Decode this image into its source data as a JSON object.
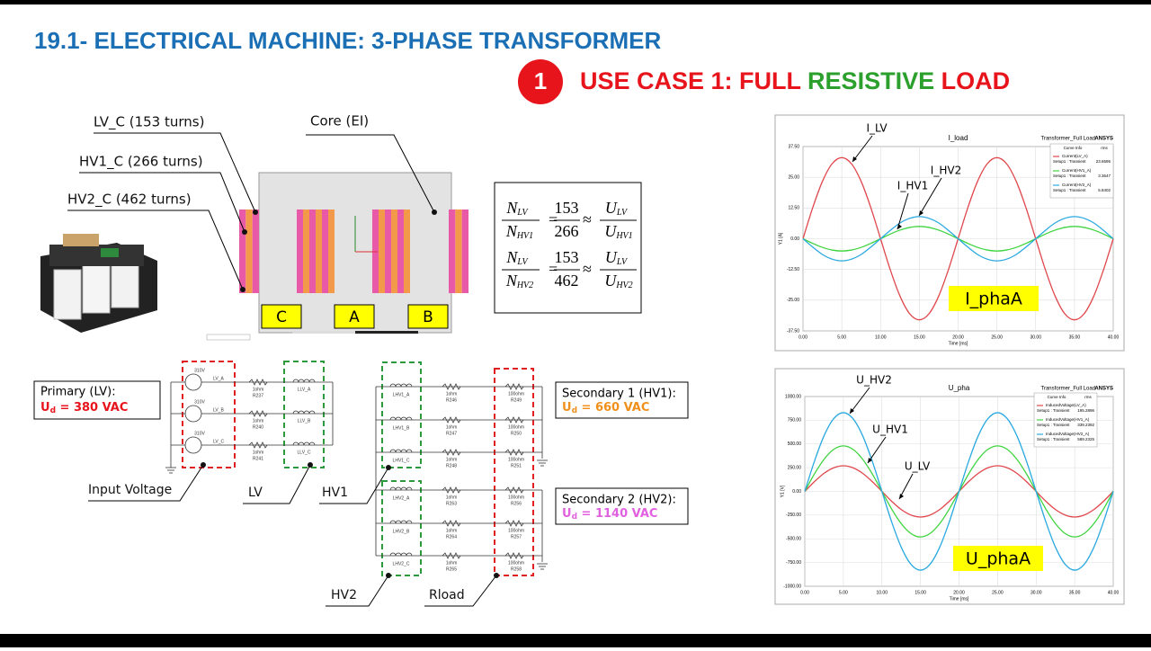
{
  "header": {
    "title": "19.1- ELECTRICAL MACHINE: 3-PHASE TRANSFORMER",
    "step": "1",
    "use_case": [
      "USE CASE 1: ",
      "FULL ",
      "RESISTIVE ",
      "LOAD"
    ]
  },
  "core": {
    "callouts": [
      "LV_C (153 turns)",
      "HV1_C (266 turns)",
      "HV2_C (462 turns)",
      "Core (EI)"
    ],
    "legs": [
      "C",
      "A",
      "B"
    ]
  },
  "equations": [
    {
      "n": "N",
      "lv": "LV",
      "hv": "HV1",
      "num": "153",
      "den": "266",
      "u": "U"
    },
    {
      "n": "N",
      "lv": "LV",
      "hv": "HV2",
      "num": "153",
      "den": "462",
      "u": "U"
    }
  ],
  "boxes": [
    {
      "label": "Primary (LV):",
      "u": "U",
      "sub": "d",
      "value": " = 380 VAC"
    },
    {
      "label": "Secondary 1 (HV1):",
      "u": "U",
      "sub": "d",
      "value": " = 660 VAC"
    },
    {
      "label": "Secondary 2 (HV2):",
      "u": "U",
      "sub": "d",
      "value": " = 1140 VAC"
    }
  ],
  "circuit": {
    "sources": [
      {
        "v": "310V",
        "name": "LV_A"
      },
      {
        "v": "310V",
        "name": "LV_B"
      },
      {
        "v": "310V",
        "name": "LV_C"
      }
    ],
    "lv_r": [
      {
        "v": "1ohm",
        "name": "R237"
      },
      {
        "v": "1ohm",
        "name": "R240"
      },
      {
        "v": "1ohm",
        "name": "R241"
      }
    ],
    "lv_coils": [
      "LLV_A",
      "LLV_B",
      "LLV_C"
    ],
    "hv_coils": [
      "LHV1_A",
      "LHV1_B",
      "LHV1_C",
      "LHV2_A",
      "LHV2_B",
      "LHV2_C"
    ],
    "hv_r": [
      {
        "v": "1ohm",
        "name": "R246"
      },
      {
        "v": "1ohm",
        "name": "R247"
      },
      {
        "v": "1ohm",
        "name": "R248"
      },
      {
        "v": "1ohm",
        "name": "R263"
      },
      {
        "v": "1ohm",
        "name": "R264"
      },
      {
        "v": "1ohm",
        "name": "R265"
      }
    ],
    "loads": [
      {
        "v": "100ohm",
        "name": "R249"
      },
      {
        "v": "100ohm",
        "name": "R250"
      },
      {
        "v": "100ohm",
        "name": "R251"
      },
      {
        "v": "100ohm",
        "name": "R256"
      },
      {
        "v": "100ohm",
        "name": "R257"
      },
      {
        "v": "100ohm",
        "name": "R258"
      }
    ],
    "callouts": [
      "Input Voltage",
      "LV",
      "HV1",
      "HV2",
      "Rload"
    ]
  },
  "plots": [
    {
      "type": "line",
      "title": "I_load",
      "project": "Transformer_Full Load",
      "brand": "ANSYS",
      "xlabel": "Time [ms]",
      "ylabel": "Y1 [A]",
      "legend_title": "Curve Info",
      "legend_rms": "rms",
      "tag": "I_phaA",
      "callouts": [
        "I_LV",
        "I_HV1",
        "I_HV2"
      ],
      "xlim": [
        0,
        40
      ],
      "ylim": [
        -37.5,
        37.5
      ],
      "xticks": [
        {
          "value": 0,
          "label": "0.00"
        },
        {
          "value": 5,
          "label": "5.00"
        },
        {
          "value": 10,
          "label": "10.00"
        },
        {
          "value": 15,
          "label": "15.00"
        },
        {
          "value": 20,
          "label": "20.00"
        },
        {
          "value": 25,
          "label": "25.00"
        },
        {
          "value": 30,
          "label": "30.00"
        },
        {
          "value": 35,
          "label": "35.00"
        },
        {
          "value": 40,
          "label": "40.00"
        }
      ],
      "yticks": [
        {
          "value": 37.5,
          "label": "37.50"
        },
        {
          "value": 25,
          "label": "25.00"
        },
        {
          "value": 12.5,
          "label": "12.50"
        },
        {
          "value": 0,
          "label": "0.00"
        },
        {
          "value": -12.5,
          "label": "-12.50"
        },
        {
          "value": -25,
          "label": "-25.00"
        },
        {
          "value": -37.5,
          "label": "-37.50"
        }
      ],
      "x": [
        0,
        1.25,
        2.5,
        3.75,
        5,
        6.25,
        7.5,
        8.75,
        10,
        11.25,
        12.5,
        13.75,
        15,
        16.25,
        17.5,
        18.75,
        20,
        21.25,
        22.5,
        23.75,
        25,
        26.25,
        27.5,
        28.75,
        30,
        31.25,
        32.5,
        33.75,
        35,
        36.25,
        37.5,
        38.75,
        40
      ],
      "series": [
        {
          "name": "Current(LV_A)",
          "setup": "Setup1 : Transient",
          "rms": "23.6595",
          "color": "#e0474c",
          "values": [
            0,
            12.6,
            23.3,
            30.5,
            33,
            30.5,
            23.3,
            12.6,
            0,
            -12.6,
            -23.3,
            -30.5,
            -33,
            -30.5,
            -23.3,
            -12.6,
            0,
            12.6,
            23.3,
            30.5,
            33,
            30.5,
            23.3,
            12.6,
            0,
            -12.6,
            -23.3,
            -30.5,
            -33,
            -30.5,
            -23.3,
            -12.6,
            0
          ]
        },
        {
          "name": "Current(HV1_A)",
          "setup": "Setup1 : Transient",
          "rms": "3.3647",
          "color": "#3fd43f",
          "values": [
            0,
            -1.9,
            -3.5,
            -4.6,
            -5,
            -4.6,
            -3.5,
            -1.9,
            0,
            1.9,
            3.5,
            4.6,
            5,
            4.6,
            3.5,
            1.9,
            0,
            -1.9,
            -3.5,
            -4.6,
            -5,
            -4.6,
            -3.5,
            -1.9,
            0,
            1.9,
            3.5,
            4.6,
            5,
            4.6,
            3.5,
            1.9,
            0
          ]
        },
        {
          "name": "Current(HV2_A)",
          "setup": "Setup1 : Transient",
          "rms": "5.8402",
          "color": "#2aa9e0",
          "values": [
            0,
            -3.4,
            -6.4,
            -8.3,
            -9,
            -8.3,
            -6.4,
            -3.4,
            0,
            3.4,
            6.4,
            8.3,
            9,
            8.3,
            6.4,
            3.4,
            0,
            -3.4,
            -6.4,
            -8.3,
            -9,
            -8.3,
            -6.4,
            -3.4,
            0,
            3.4,
            6.4,
            8.3,
            9,
            8.3,
            6.4,
            3.4,
            0
          ]
        }
      ]
    },
    {
      "type": "line",
      "title": "U_pha",
      "project": "Transformer_Full Load",
      "brand": "ANSYS",
      "xlabel": "Time [ms]",
      "ylabel": "Y1 [V]",
      "legend_title": "Curve Info",
      "legend_rms": "rms",
      "tag": "U_phaA",
      "callouts": [
        "U_HV2",
        "U_HV1",
        "U_LV"
      ],
      "xlim": [
        0,
        40
      ],
      "ylim": [
        -1000,
        1000
      ],
      "xticks": [
        {
          "value": 0,
          "label": "0.00"
        },
        {
          "value": 5,
          "label": "5.00"
        },
        {
          "value": 10,
          "label": "10.00"
        },
        {
          "value": 15,
          "label": "15.00"
        },
        {
          "value": 20,
          "label": "20.00"
        },
        {
          "value": 25,
          "label": "25.00"
        },
        {
          "value": 30,
          "label": "30.00"
        },
        {
          "value": 35,
          "label": "35.00"
        },
        {
          "value": 40,
          "label": "40.00"
        }
      ],
      "yticks": [
        {
          "value": 1000,
          "label": "1000.00"
        },
        {
          "value": 750,
          "label": "750.00"
        },
        {
          "value": 500,
          "label": "500.00"
        },
        {
          "value": 250,
          "label": "250.00"
        },
        {
          "value": 0,
          "label": "0.00"
        },
        {
          "value": -250,
          "label": "-250.00"
        },
        {
          "value": -500,
          "label": "-500.00"
        },
        {
          "value": -750,
          "label": "-750.00"
        },
        {
          "value": -1000,
          "label": "-1000.00"
        }
      ],
      "x": [
        0,
        1.25,
        2.5,
        3.75,
        5,
        6.25,
        7.5,
        8.75,
        10,
        11.25,
        12.5,
        13.75,
        15,
        16.25,
        17.5,
        18.75,
        20,
        21.25,
        22.5,
        23.75,
        25,
        26.25,
        27.5,
        28.75,
        30,
        31.25,
        32.5,
        33.75,
        35,
        36.25,
        37.5,
        38.75,
        40
      ],
      "series": [
        {
          "name": "InducedVoltage(LV_A)",
          "setup": "Setup1 : Transient",
          "rms": "195.2896",
          "color": "#e0474c",
          "values": [
            0,
            103,
            191,
            249,
            270,
            249,
            191,
            103,
            0,
            -103,
            -191,
            -249,
            -270,
            -249,
            -191,
            -103,
            0,
            103,
            191,
            249,
            270,
            249,
            191,
            103,
            0,
            -103,
            -191,
            -249,
            -270,
            -249,
            -191,
            -103,
            0
          ]
        },
        {
          "name": "InducedVoltage(HV1_A)",
          "setup": "Setup1 : Transient",
          "rms": "339.2392",
          "color": "#3fd43f",
          "values": [
            0,
            184,
            339,
            443,
            480,
            443,
            339,
            184,
            0,
            -184,
            -339,
            -443,
            -480,
            -443,
            -339,
            -184,
            0,
            184,
            339,
            443,
            480,
            443,
            339,
            184,
            0,
            -184,
            -339,
            -443,
            -480,
            -443,
            -339,
            -184,
            0
          ]
        },
        {
          "name": "InducedVoltage(HV2_A)",
          "setup": "Setup1 : Transient",
          "rms": "589.2325",
          "color": "#2aa9e0",
          "values": [
            0,
            318,
            587,
            767,
            830,
            767,
            587,
            318,
            0,
            -318,
            -587,
            -767,
            -830,
            -767,
            -587,
            -318,
            0,
            318,
            587,
            767,
            830,
            767,
            587,
            318,
            0,
            -318,
            -587,
            -767,
            -830,
            -767,
            -587,
            -318,
            0
          ]
        }
      ]
    }
  ]
}
